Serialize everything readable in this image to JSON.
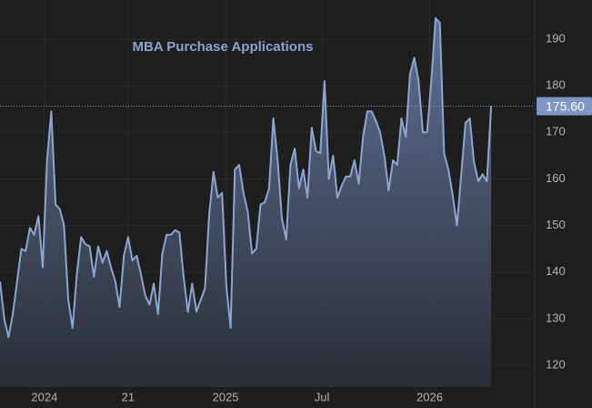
{
  "chart_data": {
    "type": "area",
    "title": "MBA Purchase Applications",
    "values": [
      138,
      130,
      126,
      131,
      138,
      145,
      144.5,
      149.5,
      148,
      152,
      141,
      164,
      174.5,
      154.5,
      153.5,
      150,
      134,
      128,
      139.5,
      147.5,
      146,
      145.5,
      139,
      145.5,
      142,
      144.5,
      141,
      138,
      132.5,
      143.5,
      147.5,
      142.5,
      143.5,
      139.5,
      135,
      133,
      137.5,
      131,
      144,
      148,
      148,
      149,
      148.5,
      139,
      131.5,
      137.5,
      131.5,
      134,
      136.5,
      152.5,
      161.5,
      156,
      157,
      137,
      128,
      162,
      163,
      157,
      153,
      144,
      145,
      154.5,
      155,
      158,
      173,
      164,
      151.5,
      147,
      163,
      166.5,
      158,
      162,
      156,
      171,
      166,
      165.5,
      181,
      160,
      165,
      156,
      158.5,
      160.5,
      160.5,
      164,
      159,
      169,
      174.5,
      174.5,
      172.5,
      170,
      165,
      157.5,
      164,
      163,
      173,
      169,
      182.5,
      186,
      181,
      170,
      170,
      181,
      194.5,
      193.5,
      165.5,
      162,
      156.5,
      150,
      161,
      172,
      173,
      163.5,
      159.5,
      161,
      159.5,
      175.6
    ],
    "color": "#8da5d2",
    "xlim": [
      0,
      125.2
    ],
    "xticks": [
      {
        "value": 10.4,
        "label": "2024"
      },
      {
        "value": 30,
        "label": "21"
      },
      {
        "value": 52.8,
        "label": "2025"
      },
      {
        "value": 75.4,
        "label": "Jul"
      },
      {
        "value": 100.6,
        "label": "2026"
      }
    ],
    "ylim": [
      116.3,
      198.4
    ],
    "yticks": [
      120,
      130,
      140,
      150,
      160,
      170,
      180,
      190
    ],
    "grid": true,
    "last_price": {
      "value": 175.6,
      "label": "175.60"
    }
  }
}
